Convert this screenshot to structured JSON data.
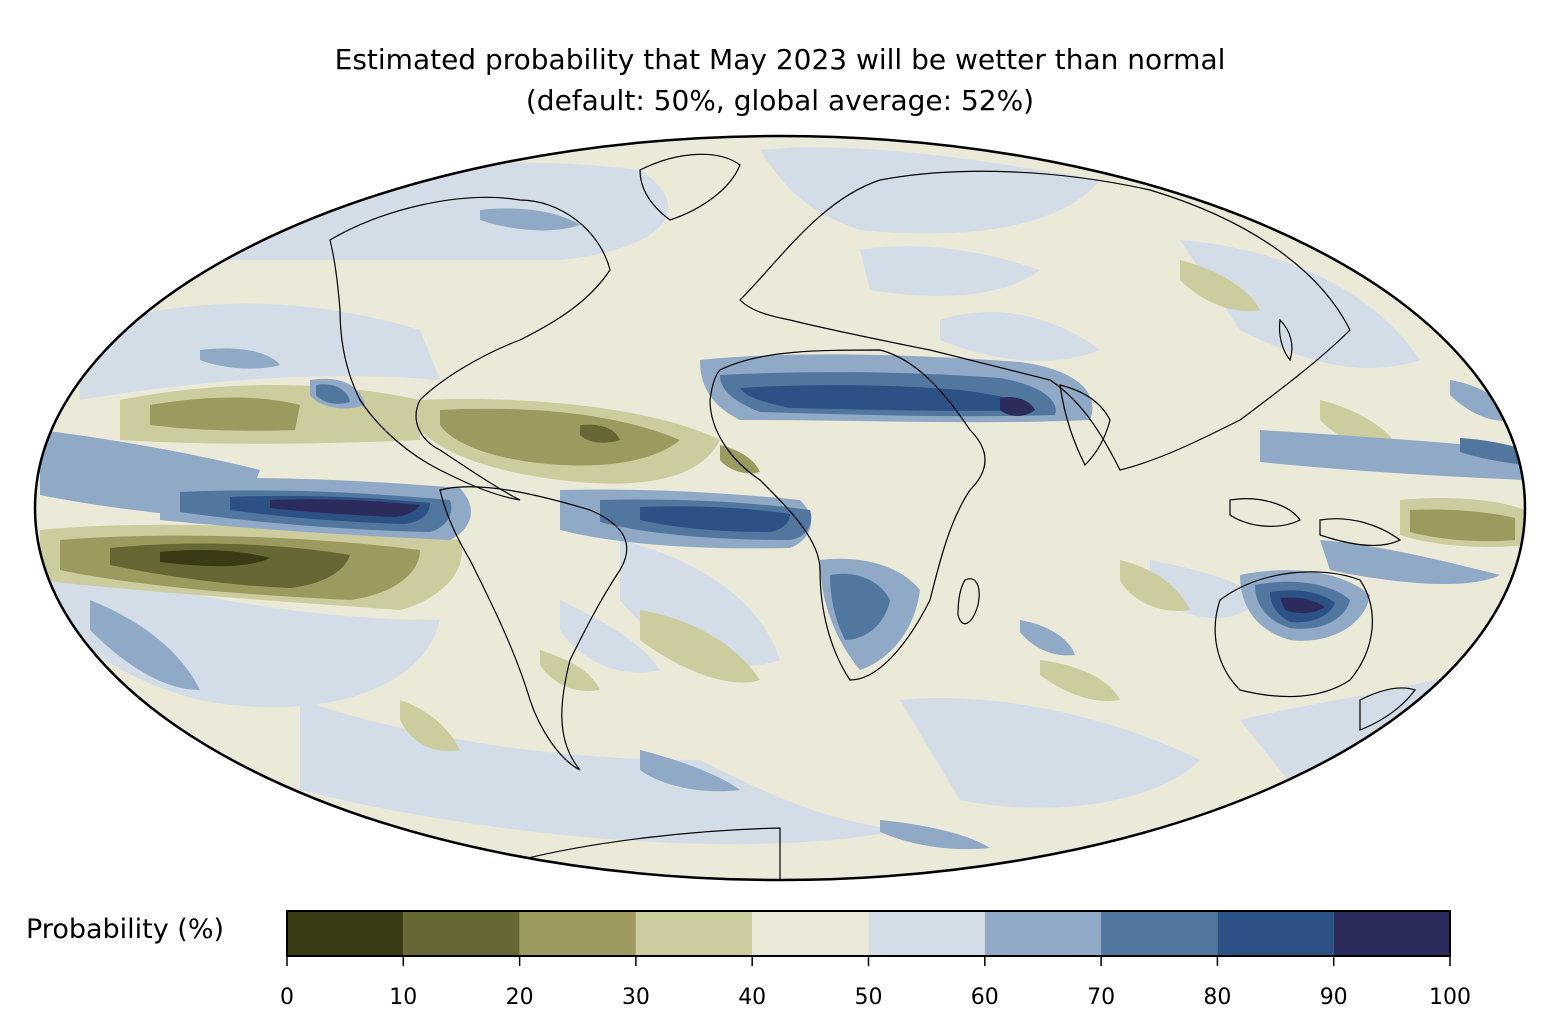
{
  "title": {
    "line1": "Estimated probability that May 2023 will be wetter than normal",
    "line2": "(default: 50%, global average: 52%)"
  },
  "colorbar": {
    "label": "Probability (%)",
    "ticks": [
      "0",
      "10",
      "20",
      "30",
      "40",
      "50",
      "60",
      "70",
      "80",
      "90",
      "100"
    ],
    "bins": [
      {
        "range": [
          0,
          10
        ],
        "color": "#3a3a14"
      },
      {
        "range": [
          10,
          20
        ],
        "color": "#676735"
      },
      {
        "range": [
          20,
          30
        ],
        "color": "#9c9a5e"
      },
      {
        "range": [
          30,
          40
        ],
        "color": "#cdcc9e"
      },
      {
        "range": [
          40,
          50
        ],
        "color": "#ebead8"
      },
      {
        "range": [
          50,
          60
        ],
        "color": "#d2dde8"
      },
      {
        "range": [
          60,
          70
        ],
        "color": "#8fa9c6"
      },
      {
        "range": [
          70,
          80
        ],
        "color": "#52779f"
      },
      {
        "range": [
          80,
          90
        ],
        "color": "#2c5184"
      },
      {
        "range": [
          90,
          100
        ],
        "color": "#2b2b5c"
      }
    ]
  },
  "map": {
    "projection": "Mollweide",
    "variable": "probability of wetter than normal precipitation",
    "month": "May 2023"
  }
}
